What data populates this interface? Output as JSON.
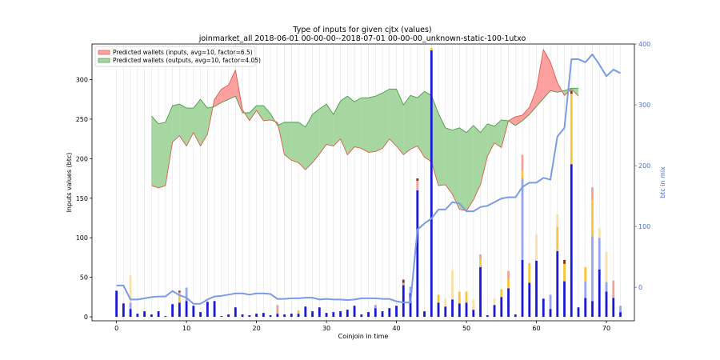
{
  "chart_data": {
    "type": "bar",
    "title": "Type of inputs for given cjtx (values)",
    "subtitle": "joinmarket_all 2018-06-01 00-00-00--2018-07-01 00-00-00_unknown-static-100-1utxo",
    "xlabel": "Coinjoin in time",
    "ylabel": "Inputs values (btc)",
    "ylabel_right": "btc in mix",
    "xlim": [
      -3.5,
      74
    ],
    "ylim": [
      -5,
      345
    ],
    "ylim_right": [
      -55,
      400
    ],
    "x_ticks": [
      0,
      10,
      20,
      30,
      40,
      50,
      60,
      70
    ],
    "y_ticks": [
      0,
      50,
      100,
      150,
      200,
      250,
      300
    ],
    "y_ticks_right": [
      0,
      100,
      200,
      300,
      400
    ],
    "grid": "vertical",
    "legend_position": "top-left",
    "colors": {
      "bar_main": "#1a1ad6",
      "bar_light": "#97a6e8",
      "bar_yellow": "#f7c53a",
      "bar_pale": "#f9dfa9",
      "bar_red": "#f2a19a",
      "bar_dark": "#8b2d1b",
      "line_mix": "#7b9be6",
      "band_red_fill": "#ff9f9f",
      "band_red_edge": "#d95c4a",
      "band_green_fill": "#a6d7a0",
      "band_green_edge": "#4a9a49",
      "right_axis": "#4a6fd8"
    },
    "legend": [
      "Predicted wallets (inputs, avg=10, factor=6.5)",
      "Predicted wallets (outputs, avg=10, factor=4.05)"
    ],
    "bars": [
      {
        "x": 0,
        "main": 33
      },
      {
        "x": 1,
        "main": 17
      },
      {
        "x": 2,
        "main": 10,
        "light": 8,
        "pale": 35
      },
      {
        "x": 3,
        "main": 4
      },
      {
        "x": 4,
        "main": 7
      },
      {
        "x": 5,
        "main": 3
      },
      {
        "x": 6,
        "main": 7
      },
      {
        "x": 7,
        "main": 1
      },
      {
        "x": 8,
        "main": 16
      },
      {
        "x": 9,
        "main": 18,
        "yellow": 8,
        "red": 5,
        "dark": 2
      },
      {
        "x": 10,
        "main": 20,
        "light": 17
      },
      {
        "x": 11,
        "main": 14
      },
      {
        "x": 12,
        "main": 6
      },
      {
        "x": 13,
        "main": 19
      },
      {
        "x": 14,
        "main": 20
      },
      {
        "x": 15,
        "main": 1
      },
      {
        "x": 16,
        "main": 3
      },
      {
        "x": 17,
        "main": 12
      },
      {
        "x": 18,
        "main": 3
      },
      {
        "x": 19,
        "main": 2
      },
      {
        "x": 20,
        "main": 4
      },
      {
        "x": 21,
        "main": 5
      },
      {
        "x": 22,
        "main": 2
      },
      {
        "x": 23,
        "main": 4,
        "red": 11
      },
      {
        "x": 24,
        "main": 3
      },
      {
        "x": 25,
        "main": 4
      },
      {
        "x": 26,
        "main": 4,
        "yellow": 4
      },
      {
        "x": 27,
        "main": 13
      },
      {
        "x": 28,
        "main": 7
      },
      {
        "x": 29,
        "main": 12
      },
      {
        "x": 30,
        "main": 5
      },
      {
        "x": 31,
        "main": 6
      },
      {
        "x": 32,
        "main": 7
      },
      {
        "x": 33,
        "main": 9
      },
      {
        "x": 34,
        "main": 14
      },
      {
        "x": 35,
        "main": 3
      },
      {
        "x": 36,
        "main": 6
      },
      {
        "x": 37,
        "main": 11,
        "light": 4
      },
      {
        "x": 38,
        "main": 7
      },
      {
        "x": 39,
        "main": 11
      },
      {
        "x": 40,
        "main": 14
      },
      {
        "x": 41,
        "main": 40,
        "red": 3,
        "dark": 4
      },
      {
        "x": 42,
        "main": 30,
        "light": 8
      },
      {
        "x": 43,
        "main": 160,
        "red": 12,
        "dark": 3
      },
      {
        "x": 44,
        "main": 7
      },
      {
        "x": 45,
        "main": 337,
        "yellow": 3
      },
      {
        "x": 46,
        "main": 18,
        "yellow": 10
      },
      {
        "x": 47,
        "main": 13,
        "pale": 10
      },
      {
        "x": 48,
        "main": 22,
        "pale": 37
      },
      {
        "x": 49,
        "main": 17,
        "yellow": 15
      },
      {
        "x": 50,
        "main": 18,
        "yellow": 14
      },
      {
        "x": 51,
        "main": 9,
        "pale": 13
      },
      {
        "x": 52,
        "main": 63,
        "yellow": 10,
        "red": 6
      },
      {
        "x": 53,
        "main": 2
      },
      {
        "x": 54,
        "main": 15,
        "pale": 8
      },
      {
        "x": 55,
        "main": 25,
        "yellow": 10
      },
      {
        "x": 56,
        "main": 36,
        "yellow": 12,
        "red": 10
      },
      {
        "x": 57,
        "main": 3
      },
      {
        "x": 58,
        "main": 72,
        "light": 103,
        "yellow": 9,
        "red": 21
      },
      {
        "x": 59,
        "main": 43,
        "yellow": 25
      },
      {
        "x": 60,
        "main": 71,
        "pale": 33
      },
      {
        "x": 61,
        "main": 23
      },
      {
        "x": 62,
        "main": 10,
        "light": 18
      },
      {
        "x": 63,
        "main": 83,
        "yellow": 31,
        "pale": 16
      },
      {
        "x": 64,
        "main": 45,
        "yellow": 22,
        "dark": 5
      },
      {
        "x": 65,
        "main": 193,
        "yellow": 89,
        "dark": 4
      },
      {
        "x": 66,
        "main": 12
      },
      {
        "x": 67,
        "main": 24,
        "light": 21,
        "yellow": 18
      },
      {
        "x": 68,
        "main": 20,
        "light": 82,
        "yellow": 46,
        "red": 16
      },
      {
        "x": 69,
        "main": 60,
        "light": 40,
        "pale": 12
      },
      {
        "x": 70,
        "main": 32,
        "light": 12,
        "pale": 38
      },
      {
        "x": 71,
        "main": 24,
        "red": 22
      },
      {
        "x": 72,
        "main": 6,
        "light": 8
      }
    ],
    "mix_line": [
      {
        "x": 0,
        "y": 3
      },
      {
        "x": 1,
        "y": 3
      },
      {
        "x": 2,
        "y": -20
      },
      {
        "x": 3,
        "y": -20
      },
      {
        "x": 4,
        "y": -18
      },
      {
        "x": 5,
        "y": -16
      },
      {
        "x": 6,
        "y": -15
      },
      {
        "x": 7,
        "y": -15
      },
      {
        "x": 8,
        "y": -6
      },
      {
        "x": 9,
        "y": -13
      },
      {
        "x": 10,
        "y": -17
      },
      {
        "x": 11,
        "y": -27
      },
      {
        "x": 12,
        "y": -27
      },
      {
        "x": 13,
        "y": -20
      },
      {
        "x": 14,
        "y": -15
      },
      {
        "x": 15,
        "y": -14
      },
      {
        "x": 16,
        "y": -12
      },
      {
        "x": 17,
        "y": -10
      },
      {
        "x": 18,
        "y": -10
      },
      {
        "x": 19,
        "y": -12
      },
      {
        "x": 20,
        "y": -10
      },
      {
        "x": 21,
        "y": -10
      },
      {
        "x": 22,
        "y": -11
      },
      {
        "x": 23,
        "y": -19
      },
      {
        "x": 24,
        "y": -19
      },
      {
        "x": 25,
        "y": -18
      },
      {
        "x": 26,
        "y": -18
      },
      {
        "x": 27,
        "y": -17
      },
      {
        "x": 28,
        "y": -17
      },
      {
        "x": 29,
        "y": -20
      },
      {
        "x": 30,
        "y": -19
      },
      {
        "x": 31,
        "y": -20
      },
      {
        "x": 32,
        "y": -20
      },
      {
        "x": 33,
        "y": -21
      },
      {
        "x": 34,
        "y": -20
      },
      {
        "x": 35,
        "y": -18
      },
      {
        "x": 36,
        "y": -18
      },
      {
        "x": 37,
        "y": -18
      },
      {
        "x": 38,
        "y": -19
      },
      {
        "x": 39,
        "y": -19
      },
      {
        "x": 40,
        "y": -23
      },
      {
        "x": 41,
        "y": -25
      },
      {
        "x": 42,
        "y": -25
      },
      {
        "x": 43,
        "y": 95
      },
      {
        "x": 44,
        "y": 105
      },
      {
        "x": 45,
        "y": 113
      },
      {
        "x": 46,
        "y": 128
      },
      {
        "x": 47,
        "y": 128
      },
      {
        "x": 48,
        "y": 140
      },
      {
        "x": 49,
        "y": 138
      },
      {
        "x": 50,
        "y": 125
      },
      {
        "x": 51,
        "y": 125
      },
      {
        "x": 52,
        "y": 132
      },
      {
        "x": 53,
        "y": 134
      },
      {
        "x": 54,
        "y": 140
      },
      {
        "x": 55,
        "y": 146
      },
      {
        "x": 56,
        "y": 148
      },
      {
        "x": 57,
        "y": 148
      },
      {
        "x": 58,
        "y": 165
      },
      {
        "x": 59,
        "y": 172
      },
      {
        "x": 60,
        "y": 172
      },
      {
        "x": 61,
        "y": 180
      },
      {
        "x": 62,
        "y": 177
      },
      {
        "x": 63,
        "y": 248
      },
      {
        "x": 64,
        "y": 262
      },
      {
        "x": 65,
        "y": 375
      },
      {
        "x": 66,
        "y": 375
      },
      {
        "x": 67,
        "y": 370
      },
      {
        "x": 68,
        "y": 383
      },
      {
        "x": 69,
        "y": 366
      },
      {
        "x": 70,
        "y": 347
      },
      {
        "x": 71,
        "y": 358
      },
      {
        "x": 72,
        "y": 352
      }
    ],
    "inputs_band": [
      {
        "x": 5,
        "y": 166
      },
      {
        "x": 6,
        "y": 163
      },
      {
        "x": 7,
        "y": 166
      },
      {
        "x": 8,
        "y": 221
      },
      {
        "x": 9,
        "y": 229
      },
      {
        "x": 10,
        "y": 216
      },
      {
        "x": 11,
        "y": 233
      },
      {
        "x": 12,
        "y": 216
      },
      {
        "x": 13,
        "y": 231
      },
      {
        "x": 14,
        "y": 275
      },
      {
        "x": 15,
        "y": 288
      },
      {
        "x": 16,
        "y": 293
      },
      {
        "x": 17,
        "y": 312
      },
      {
        "x": 18,
        "y": 262
      },
      {
        "x": 19,
        "y": 248
      },
      {
        "x": 20,
        "y": 261
      },
      {
        "x": 21,
        "y": 248
      },
      {
        "x": 22,
        "y": 249
      },
      {
        "x": 23,
        "y": 246
      },
      {
        "x": 24,
        "y": 205
      },
      {
        "x": 25,
        "y": 198
      },
      {
        "x": 26,
        "y": 195
      },
      {
        "x": 27,
        "y": 186
      },
      {
        "x": 28,
        "y": 195
      },
      {
        "x": 29,
        "y": 206
      },
      {
        "x": 30,
        "y": 218
      },
      {
        "x": 31,
        "y": 216
      },
      {
        "x": 32,
        "y": 225
      },
      {
        "x": 33,
        "y": 205
      },
      {
        "x": 34,
        "y": 215
      },
      {
        "x": 35,
        "y": 213
      },
      {
        "x": 36,
        "y": 208
      },
      {
        "x": 37,
        "y": 209
      },
      {
        "x": 38,
        "y": 213
      },
      {
        "x": 39,
        "y": 225
      },
      {
        "x": 40,
        "y": 216
      },
      {
        "x": 41,
        "y": 205
      },
      {
        "x": 42,
        "y": 212
      },
      {
        "x": 43,
        "y": 216
      },
      {
        "x": 44,
        "y": 202
      },
      {
        "x": 45,
        "y": 196
      },
      {
        "x": 46,
        "y": 166
      },
      {
        "x": 47,
        "y": 167
      },
      {
        "x": 48,
        "y": 155
      },
      {
        "x": 49,
        "y": 136
      },
      {
        "x": 50,
        "y": 134
      },
      {
        "x": 51,
        "y": 148
      },
      {
        "x": 52,
        "y": 167
      },
      {
        "x": 53,
        "y": 203
      },
      {
        "x": 54,
        "y": 220
      },
      {
        "x": 55,
        "y": 214
      },
      {
        "x": 56,
        "y": 248
      },
      {
        "x": 57,
        "y": 253
      },
      {
        "x": 58,
        "y": 255
      },
      {
        "x": 59,
        "y": 265
      },
      {
        "x": 60,
        "y": 288
      },
      {
        "x": 61,
        "y": 338
      },
      {
        "x": 62,
        "y": 322
      },
      {
        "x": 63,
        "y": 296
      },
      {
        "x": 64,
        "y": 280
      },
      {
        "x": 65,
        "y": 288
      },
      {
        "x": 66,
        "y": 279
      }
    ],
    "outputs_band": [
      {
        "x": 5,
        "y": 254
      },
      {
        "x": 6,
        "y": 244
      },
      {
        "x": 7,
        "y": 246
      },
      {
        "x": 8,
        "y": 267
      },
      {
        "x": 9,
        "y": 269
      },
      {
        "x": 10,
        "y": 264
      },
      {
        "x": 11,
        "y": 264
      },
      {
        "x": 12,
        "y": 275
      },
      {
        "x": 13,
        "y": 264
      },
      {
        "x": 14,
        "y": 266
      },
      {
        "x": 15,
        "y": 271
      },
      {
        "x": 16,
        "y": 275
      },
      {
        "x": 17,
        "y": 279
      },
      {
        "x": 18,
        "y": 258
      },
      {
        "x": 19,
        "y": 258
      },
      {
        "x": 20,
        "y": 267
      },
      {
        "x": 21,
        "y": 267
      },
      {
        "x": 22,
        "y": 257
      },
      {
        "x": 23,
        "y": 242
      },
      {
        "x": 24,
        "y": 246
      },
      {
        "x": 25,
        "y": 246
      },
      {
        "x": 26,
        "y": 246
      },
      {
        "x": 27,
        "y": 240
      },
      {
        "x": 28,
        "y": 256
      },
      {
        "x": 29,
        "y": 263
      },
      {
        "x": 30,
        "y": 269
      },
      {
        "x": 31,
        "y": 256
      },
      {
        "x": 32,
        "y": 273
      },
      {
        "x": 33,
        "y": 279
      },
      {
        "x": 34,
        "y": 272
      },
      {
        "x": 35,
        "y": 277
      },
      {
        "x": 36,
        "y": 277
      },
      {
        "x": 37,
        "y": 279
      },
      {
        "x": 38,
        "y": 283
      },
      {
        "x": 39,
        "y": 288
      },
      {
        "x": 40,
        "y": 288
      },
      {
        "x": 41,
        "y": 268
      },
      {
        "x": 42,
        "y": 280
      },
      {
        "x": 43,
        "y": 277
      },
      {
        "x": 44,
        "y": 285
      },
      {
        "x": 45,
        "y": 280
      },
      {
        "x": 46,
        "y": 257
      },
      {
        "x": 47,
        "y": 239
      },
      {
        "x": 48,
        "y": 236
      },
      {
        "x": 49,
        "y": 239
      },
      {
        "x": 50,
        "y": 233
      },
      {
        "x": 51,
        "y": 242
      },
      {
        "x": 52,
        "y": 233
      },
      {
        "x": 53,
        "y": 244
      },
      {
        "x": 54,
        "y": 241
      },
      {
        "x": 55,
        "y": 249
      },
      {
        "x": 56,
        "y": 248
      },
      {
        "x": 57,
        "y": 242
      },
      {
        "x": 58,
        "y": 248
      },
      {
        "x": 59,
        "y": 256
      },
      {
        "x": 60,
        "y": 266
      },
      {
        "x": 61,
        "y": 276
      },
      {
        "x": 62,
        "y": 286
      },
      {
        "x": 63,
        "y": 284
      },
      {
        "x": 64,
        "y": 286
      },
      {
        "x": 65,
        "y": 289
      },
      {
        "x": 66,
        "y": 289
      }
    ]
  }
}
